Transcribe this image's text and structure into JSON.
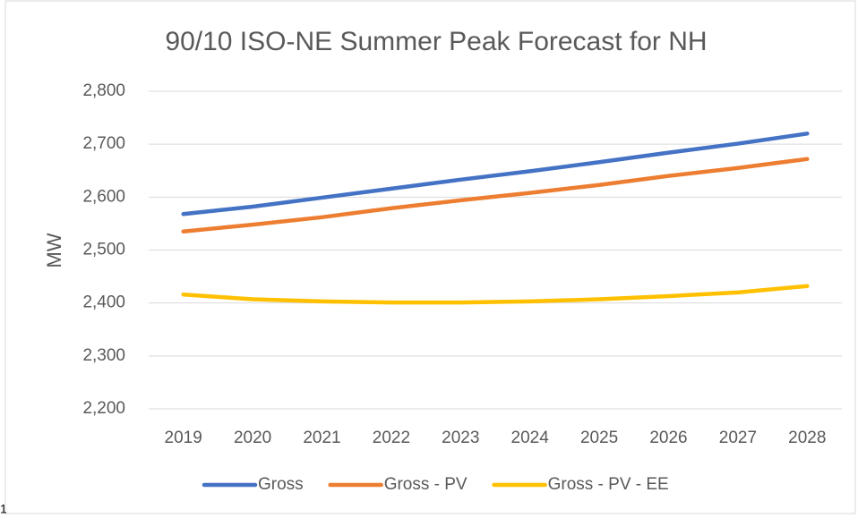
{
  "chart_data": {
    "type": "line",
    "title": "90/10 ISO-NE Summer Peak Forecast for NH",
    "ylabel": "MW",
    "categories": [
      "2019",
      "2020",
      "2021",
      "2022",
      "2023",
      "2024",
      "2025",
      "2026",
      "2027",
      "2028"
    ],
    "series": [
      {
        "name": "Gross",
        "color": "#4472c4",
        "values": [
          2568,
          2582,
          2599,
          2616,
          2633,
          2649,
          2666,
          2684,
          2701,
          2720
        ]
      },
      {
        "name": "Gross - PV",
        "color": "#ed7d31",
        "values": [
          2535,
          2548,
          2562,
          2579,
          2594,
          2608,
          2623,
          2640,
          2655,
          2672
        ]
      },
      {
        "name": "Gross - PV - EE",
        "color": "#ffc000",
        "values": [
          2416,
          2407,
          2403,
          2401,
          2401,
          2403,
          2407,
          2413,
          2420,
          2432
        ]
      }
    ],
    "ylim": [
      2200,
      2800
    ],
    "yticks": [
      {
        "value": 2200,
        "label": "2,200"
      },
      {
        "value": 2300,
        "label": "2,300"
      },
      {
        "value": 2400,
        "label": "2,400"
      },
      {
        "value": 2500,
        "label": "2,500"
      },
      {
        "value": 2600,
        "label": "2,600"
      },
      {
        "value": 2700,
        "label": "2,700"
      },
      {
        "value": 2800,
        "label": "2,800"
      }
    ],
    "grid": true,
    "legend": "bottom"
  },
  "footnote": "1"
}
